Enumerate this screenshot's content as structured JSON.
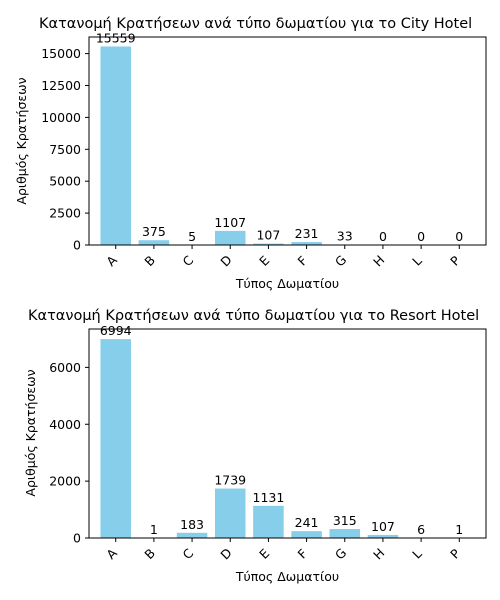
{
  "chart_data": [
    {
      "type": "bar",
      "title": "Κατανομή Κρατήσεων ανά τύπο δωματίου για το City Hotel",
      "xlabel": "Τύπος Δωματίου",
      "ylabel": "Αριθμός Κρατήσεων",
      "categories": [
        "A",
        "B",
        "C",
        "D",
        "E",
        "F",
        "G",
        "H",
        "L",
        "P"
      ],
      "values": [
        15559,
        375,
        5,
        1107,
        107,
        231,
        33,
        0,
        0,
        0
      ],
      "ylim": [
        0,
        16300
      ],
      "yticks": [
        0,
        2500,
        5000,
        7500,
        10000,
        12500,
        15000
      ],
      "bar_color": "#87ceeb"
    },
    {
      "type": "bar",
      "title": "Κατανομή Κρατήσεων ανά τύπο δωματίου για το Resort Hotel",
      "xlabel": "Τύπος Δωματίου",
      "ylabel": "Αριθμός Κρατήσεων",
      "categories": [
        "A",
        "B",
        "C",
        "D",
        "E",
        "F",
        "G",
        "H",
        "L",
        "P"
      ],
      "values": [
        6994,
        1,
        183,
        1739,
        1131,
        241,
        315,
        107,
        6,
        1
      ],
      "ylim": [
        0,
        7350
      ],
      "yticks": [
        0,
        2000,
        4000,
        6000
      ],
      "bar_color": "#87ceeb"
    }
  ]
}
